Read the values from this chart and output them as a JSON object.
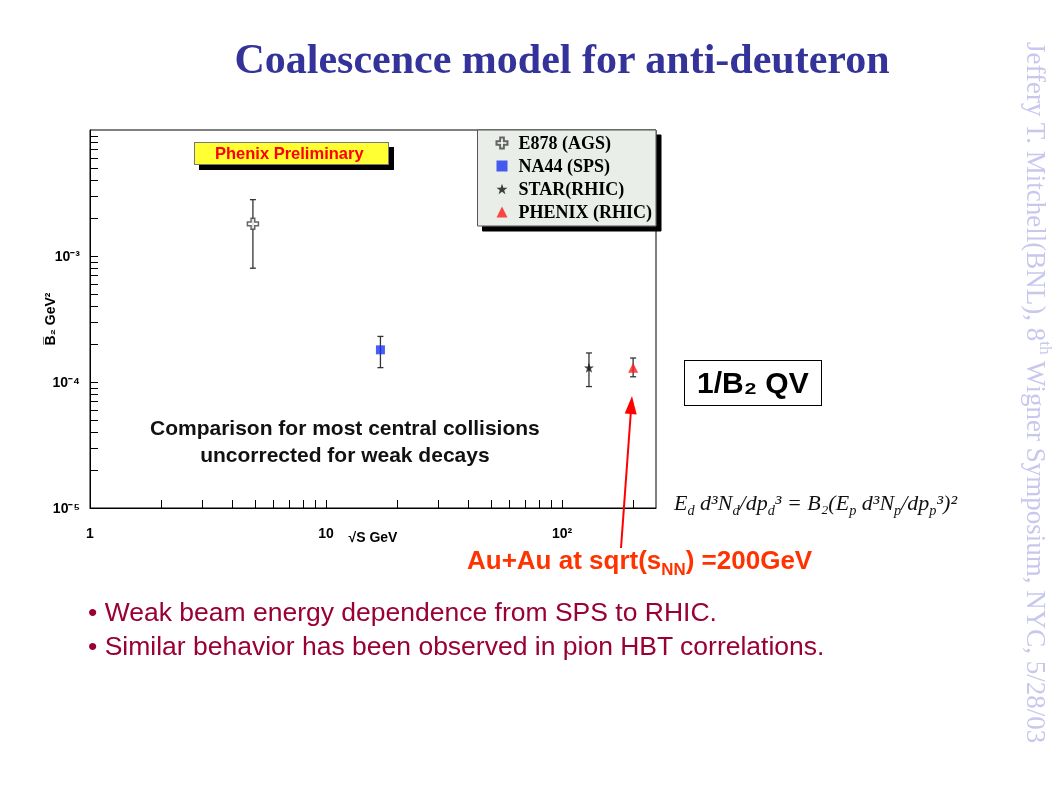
{
  "chart_data": {
    "type": "scatter",
    "title": "Coalescence model for anti-deuteron",
    "xlabel": "√S GeV",
    "ylabel": "B̅₂ GeV²",
    "log": "xy",
    "xlim": [
      1,
      250
    ],
    "ylim": [
      1e-05,
      0.01
    ],
    "xticks": [
      1,
      {
        "value": 2,
        "label": null
      },
      {
        "value": 3,
        "label": null
      },
      {
        "value": 4,
        "label": null
      },
      {
        "value": 5,
        "label": null
      },
      {
        "value": 6,
        "label": null
      },
      {
        "value": 7,
        "label": null
      },
      {
        "value": 8,
        "label": null
      },
      {
        "value": 9,
        "label": null
      },
      10,
      {
        "value": 20,
        "label": null
      },
      {
        "value": 30,
        "label": null
      },
      {
        "value": 40,
        "label": null
      },
      {
        "value": 50,
        "label": null
      },
      {
        "value": 60,
        "label": null
      },
      {
        "value": 70,
        "label": null
      },
      {
        "value": 80,
        "label": null
      },
      {
        "value": 90,
        "label": null
      },
      {
        "value": 100,
        "label": "10²"
      },
      {
        "value": 200,
        "label": null
      }
    ],
    "yticks": [
      {
        "value": 1e-05,
        "label": "10⁻⁵"
      },
      {
        "value": 2e-05,
        "label": null
      },
      {
        "value": 3e-05,
        "label": null
      },
      {
        "value": 4e-05,
        "label": null
      },
      {
        "value": 5e-05,
        "label": null
      },
      {
        "value": 6e-05,
        "label": null
      },
      {
        "value": 7e-05,
        "label": null
      },
      {
        "value": 8e-05,
        "label": null
      },
      {
        "value": 9e-05,
        "label": null
      },
      {
        "value": 0.0001,
        "label": "10⁻⁴"
      },
      {
        "value": 0.0002,
        "label": null
      },
      {
        "value": 0.0003,
        "label": null
      },
      {
        "value": 0.0004,
        "label": null
      },
      {
        "value": 0.0005,
        "label": null
      },
      {
        "value": 0.0006,
        "label": null
      },
      {
        "value": 0.0007,
        "label": null
      },
      {
        "value": 0.0008,
        "label": null
      },
      {
        "value": 0.0009,
        "label": null
      },
      {
        "value": 0.001,
        "label": "10⁻³"
      },
      {
        "value": 0.002,
        "label": null
      },
      {
        "value": 0.003,
        "label": null
      },
      {
        "value": 0.004,
        "label": null
      },
      {
        "value": 0.005,
        "label": null
      },
      {
        "value": 0.006,
        "label": null
      },
      {
        "value": 0.007,
        "label": null
      },
      {
        "value": 0.008,
        "label": null
      },
      {
        "value": 0.009,
        "label": null
      }
    ],
    "legend": "top right",
    "series": [
      {
        "name": "E878 (AGS)",
        "color": "#404040",
        "marker": "cross",
        "x": [
          4.9
        ],
        "values": [
          0.0018
        ],
        "errors": [
          [
            0.0008,
            0.0028
          ]
        ]
      },
      {
        "name": "NA44 (SPS)",
        "color": "#1a35f0",
        "marker": "square",
        "x": [
          17
        ],
        "values": [
          0.00018
        ],
        "errors": [
          [
            0.00013,
            0.00023
          ]
        ]
      },
      {
        "name": "STAR(RHIC)",
        "color": "#111111",
        "marker": "star",
        "x": [
          130
        ],
        "values": [
          0.00013
        ],
        "errors": [
          [
            9.2e-05,
            0.00017
          ]
        ]
      },
      {
        "name": "PHENIX (RHIC)",
        "color": "#ff1a1a",
        "marker": "triangle",
        "x": [
          200
        ],
        "values": [
          0.00013
        ],
        "errors": [
          [
            0.00011,
            0.000155
          ]
        ]
      }
    ],
    "annotations": [
      "Phenix Preliminary",
      "Comparison for most central collisions\nuncorrected for weak decays",
      "1/B₂ QV",
      "E$_{d}$ d³N$_{d}$/dp$_{d}$³ = B₂(E$_{p}$ d³N$_{p}$/dp$_{p}$³)²",
      "Au+Au at sqrt(s$_{NN}$) =200GeV",
      "• Weak beam energy dependence from SPS to RHIC.",
      "• Similar behavior has been observed in pion HBT correlations.",
      "Jeffery T. Mitchell(BNL), 8$^{th}$ Wigner Symposium, NYC, 5/28/03"
    ]
  }
}
